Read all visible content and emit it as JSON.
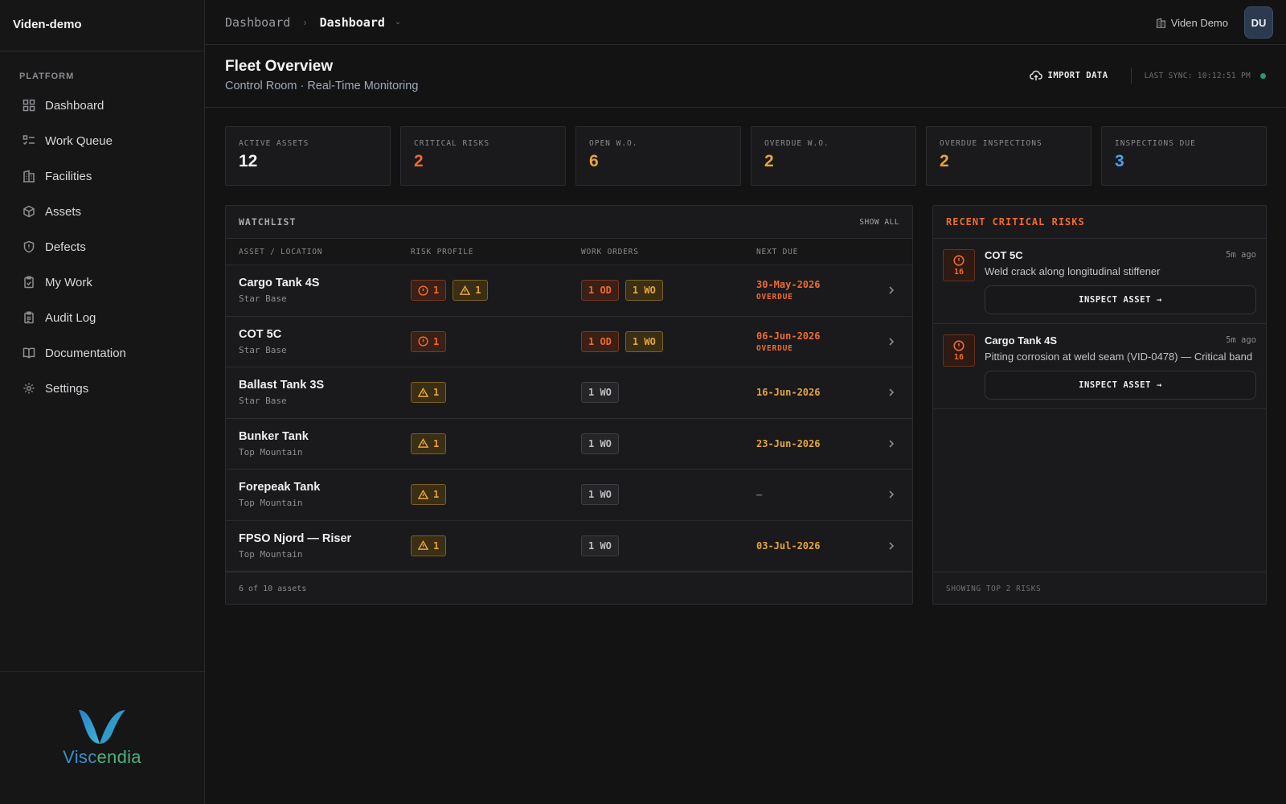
{
  "sidebar": {
    "brand": "Viden-demo",
    "section_label": "PLATFORM",
    "items": [
      {
        "label": "Dashboard",
        "icon": "grid-icon"
      },
      {
        "label": "Work Queue",
        "icon": "list-check-icon"
      },
      {
        "label": "Facilities",
        "icon": "building-icon"
      },
      {
        "label": "Assets",
        "icon": "cube-icon"
      },
      {
        "label": "Defects",
        "icon": "shield-alert-icon"
      },
      {
        "label": "My Work",
        "icon": "clipboard-icon"
      },
      {
        "label": "Audit Log",
        "icon": "clipboard-list-icon"
      },
      {
        "label": "Documentation",
        "icon": "book-icon"
      },
      {
        "label": "Settings",
        "icon": "gear-icon"
      }
    ],
    "logo_text_1": "Visc",
    "logo_text_2": "endia"
  },
  "topbar": {
    "crumb_1": "Dashboard",
    "crumb_2": "Dashboard",
    "org": "Viden Demo",
    "avatar": "DU"
  },
  "header": {
    "title": "Fleet Overview",
    "subtitle": "Control Room · Real-Time Monitoring",
    "import_label": "IMPORT DATA",
    "sync": "LAST SYNC: 10:12:51 PM"
  },
  "kpis": [
    {
      "label": "ACTIVE ASSETS",
      "value": "12",
      "color": "#f2f2f4"
    },
    {
      "label": "CRITICAL RISKS",
      "value": "2",
      "color": "#ef6a2e"
    },
    {
      "label": "OPEN W.O.",
      "value": "6",
      "color": "#e6a43a"
    },
    {
      "label": "OVERDUE W.O.",
      "value": "2",
      "color": "#e6a43a"
    },
    {
      "label": "OVERDUE INSPECTIONS",
      "value": "2",
      "color": "#e6a43a"
    },
    {
      "label": "INSPECTIONS DUE",
      "value": "3",
      "color": "#4f9ee6"
    }
  ],
  "watchlist": {
    "title": "WATCHLIST",
    "show_all": "SHOW ALL",
    "columns": [
      "ASSET / LOCATION",
      "RISK PROFILE",
      "WORK ORDERS",
      "NEXT DUE"
    ],
    "rows": [
      {
        "name": "Cargo Tank 4S",
        "location": "Star Base",
        "crit": "1",
        "warn": "1",
        "od": "1 OD",
        "wo": "1 WO",
        "due": "30-May-2026",
        "overdue": "OVERDUE"
      },
      {
        "name": "COT 5C",
        "location": "Star Base",
        "crit": "1",
        "warn": null,
        "od": "1 OD",
        "wo": "1 WO",
        "due": "06-Jun-2026",
        "overdue": "OVERDUE"
      },
      {
        "name": "Ballast Tank 3S",
        "location": "Star Base",
        "crit": null,
        "warn": "1",
        "od": null,
        "wo": "1 WO",
        "due": "16-Jun-2026",
        "overdue": null
      },
      {
        "name": "Bunker Tank",
        "location": "Top Mountain",
        "crit": null,
        "warn": "1",
        "od": null,
        "wo": "1 WO",
        "due": "23-Jun-2026",
        "overdue": null
      },
      {
        "name": "Forepeak Tank",
        "location": "Top Mountain",
        "crit": null,
        "warn": "1",
        "od": null,
        "wo": "1 WO",
        "due": "—",
        "overdue": null
      },
      {
        "name": "FPSO Njord — Riser",
        "location": "Top Mountain",
        "crit": null,
        "warn": "1",
        "od": null,
        "wo": "1 WO",
        "due": "03-Jul-2026",
        "overdue": null
      }
    ],
    "footer": "6 of 10 assets"
  },
  "risks": {
    "title": "RECENT CRITICAL RISKS",
    "items": [
      {
        "score": "16",
        "name": "COT 5C",
        "time": "5m ago",
        "desc": "Weld crack along longitudinal stiffener",
        "action": "INSPECT ASSET →"
      },
      {
        "score": "16",
        "name": "Cargo Tank 4S",
        "time": "5m ago",
        "desc": "Pitting corrosion at weld seam (VID-0478) — Critical band",
        "action": "INSPECT ASSET →"
      }
    ],
    "footer": "SHOWING TOP 2 RISKS"
  }
}
